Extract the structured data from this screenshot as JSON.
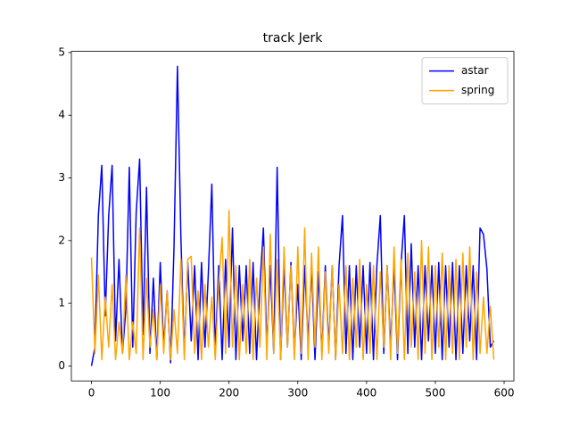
{
  "chart_data": {
    "type": "line",
    "title": "track Jerk",
    "x": [
      0,
      5,
      10,
      15,
      20,
      25,
      30,
      35,
      40,
      45,
      50,
      55,
      60,
      65,
      70,
      75,
      80,
      85,
      90,
      95,
      100,
      105,
      110,
      115,
      120,
      125,
      130,
      135,
      140,
      145,
      150,
      155,
      160,
      165,
      170,
      175,
      180,
      185,
      190,
      195,
      200,
      205,
      210,
      215,
      220,
      225,
      230,
      235,
      240,
      245,
      250,
      255,
      260,
      265,
      270,
      275,
      280,
      285,
      290,
      295,
      300,
      305,
      310,
      315,
      320,
      325,
      330,
      335,
      340,
      345,
      350,
      355,
      360,
      365,
      370,
      375,
      380,
      385,
      390,
      395,
      400,
      405,
      410,
      415,
      420,
      425,
      430,
      435,
      440,
      445,
      450,
      455,
      460,
      465,
      470,
      475,
      480,
      485,
      490,
      495,
      500,
      505,
      510,
      515,
      520,
      525,
      530,
      535,
      540,
      545,
      550,
      555,
      560,
      565,
      570,
      575,
      580,
      585
    ],
    "series": [
      {
        "name": "astar",
        "color": "#0000ff",
        "values": [
          0,
          0.3,
          2.4,
          3.2,
          0.8,
          2.4,
          3.2,
          0.4,
          1.7,
          0.2,
          0.9,
          3.17,
          0.3,
          2.45,
          3.3,
          0.5,
          2.85,
          0.2,
          1.4,
          0.1,
          1.65,
          0.3,
          1.2,
          0.05,
          1.9,
          4.78,
          2.05,
          0.2,
          1.65,
          0.4,
          1.6,
          0.1,
          1.65,
          0.3,
          1.5,
          2.9,
          0.2,
          1.6,
          0.1,
          1.7,
          0.3,
          2.2,
          0.1,
          1.6,
          0.4,
          1.6,
          0.2,
          1.65,
          0.1,
          1.3,
          2.2,
          0.3,
          1.6,
          0.2,
          3.17,
          0.1,
          1.6,
          0.3,
          1.65,
          0.2,
          1.3,
          0.1,
          1.6,
          0.4,
          1.6,
          0.1,
          1.5,
          0.2,
          1.6,
          0.3,
          1.6,
          0.1,
          1.6,
          2.4,
          0.2,
          1.6,
          0.1,
          1.6,
          0.3,
          1.6,
          0.2,
          1.65,
          0.1,
          1.6,
          2.4,
          0.2,
          1.6,
          0.3,
          1.6,
          0.1,
          1.6,
          2.4,
          0.2,
          1.95,
          0.3,
          1.6,
          0.1,
          1.6,
          0.4,
          1.6,
          0.2,
          1.65,
          0.1,
          1.6,
          0.3,
          1.65,
          0.1,
          1.6,
          0.2,
          1.6,
          0.4,
          1.6,
          0.1,
          2.2,
          2.1,
          1.55,
          0.3,
          0.4
        ]
      },
      {
        "name": "spring",
        "color": "#ffa500",
        "values": [
          1.73,
          0.2,
          1.45,
          0.1,
          1.1,
          0.3,
          1.3,
          0.1,
          0.7,
          0.2,
          1.45,
          0.1,
          0.7,
          0.2,
          2.2,
          0.1,
          1.4,
          0.3,
          0.9,
          0.1,
          1.3,
          0.2,
          1.2,
          0.1,
          0.9,
          0.2,
          1.7,
          0.1,
          1.7,
          1.75,
          0.2,
          1.2,
          0.1,
          1.3,
          0.3,
          1.1,
          0.1,
          1.3,
          2.05,
          0.2,
          2.48,
          0.3,
          1.6,
          0.1,
          1.3,
          0.2,
          1.7,
          0.1,
          1.4,
          0.3,
          1.9,
          0.1,
          2.1,
          0.2,
          1.7,
          0.1,
          1.9,
          0.3,
          1.6,
          0.1,
          1.9,
          0.2,
          2.2,
          0.1,
          1.8,
          0.3,
          1.9,
          0.1,
          1.5,
          0.2,
          1.6,
          0.1,
          1.3,
          0.2,
          1.6,
          0.1,
          1.4,
          0.3,
          1.7,
          0.1,
          1.3,
          0.2,
          1.6,
          0.1,
          1.5,
          0.3,
          1.6,
          0.1,
          1.9,
          0.2,
          1.7,
          0.1,
          1.8,
          0.3,
          1.5,
          0.1,
          2.0,
          0.2,
          1.9,
          0.1,
          1.6,
          0.3,
          1.8,
          0.1,
          1.6,
          0.2,
          1.7,
          0.1,
          1.8,
          0.3,
          1.9,
          0.1,
          1.5,
          0.2,
          1.1,
          0.2,
          0.95,
          0.1
        ]
      }
    ],
    "xlim": [
      -29.25,
      614.25
    ],
    "ylim": [
      -0.239,
      5.019
    ],
    "xticks": [
      0,
      100,
      200,
      300,
      400,
      500,
      600
    ],
    "yticks": [
      0,
      1,
      2,
      3,
      4,
      5
    ],
    "legend": "upper right"
  }
}
